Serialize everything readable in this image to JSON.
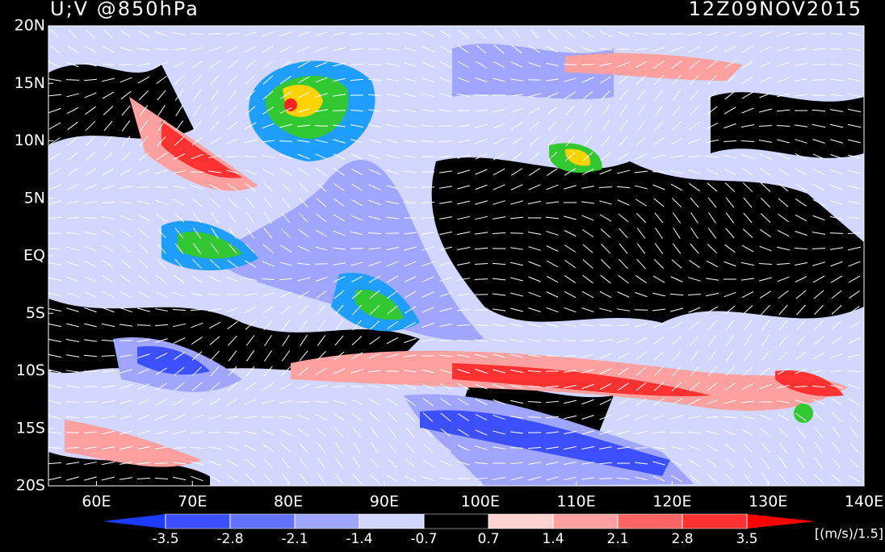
{
  "map": {
    "title": "U;V @850hPa",
    "time": "12Z09NOV2015",
    "lon_range": [
      55,
      140
    ],
    "lat_range": [
      -20,
      20
    ],
    "lon_labels": [
      {
        "value": 60,
        "label": "60E"
      },
      {
        "value": 70,
        "label": "70E"
      },
      {
        "value": 80,
        "label": "80E"
      },
      {
        "value": 90,
        "label": "90E"
      },
      {
        "value": 100,
        "label": "100E"
      },
      {
        "value": 110,
        "label": "110E"
      },
      {
        "value": 120,
        "label": "120E"
      },
      {
        "value": 130,
        "label": "130E"
      },
      {
        "value": 140,
        "label": "140E"
      }
    ],
    "lat_labels": [
      {
        "value": 20,
        "label": "20N"
      },
      {
        "value": 15,
        "label": "15N"
      },
      {
        "value": 10,
        "label": "10N"
      },
      {
        "value": 5,
        "label": "5N"
      },
      {
        "value": 0,
        "label": "EQ"
      },
      {
        "value": -5,
        "label": "5S"
      },
      {
        "value": -10,
        "label": "10S"
      },
      {
        "value": -15,
        "label": "15S"
      },
      {
        "value": -20,
        "label": "20S"
      }
    ],
    "colorbar": {
      "levels": [
        -3.5,
        -2.8,
        -2.1,
        -1.4,
        -0.7,
        0.7,
        1.4,
        2.1,
        2.8,
        3.5
      ],
      "colors": [
        "#1e3cff",
        "#3c50ff",
        "#6473ff",
        "#a0a5ff",
        "#d2d7ff",
        "#000000",
        "#ffd2d2",
        "#ffa0a0",
        "#ff6464",
        "#ff3232",
        "#ff0000"
      ],
      "unit": "[(m/s)/1.5]"
    }
  }
}
